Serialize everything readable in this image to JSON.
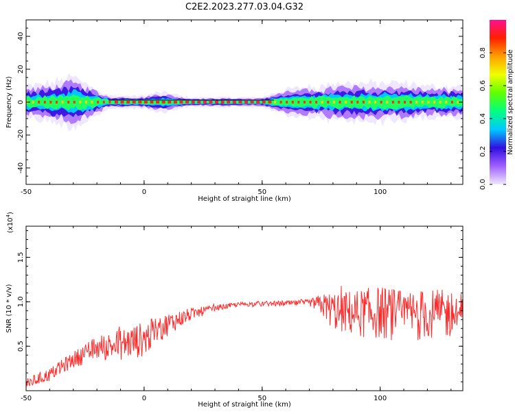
{
  "title": "C2E2.2023.277.03.04.G32",
  "colors": {
    "axis": "#000000",
    "snr_line": "#ff2a2a",
    "background": "#ffffff"
  },
  "chart_data": [
    {
      "type": "heatmap",
      "xlabel": "Height of straight line (km)",
      "ylabel": "Frequency (Hz)",
      "xlim": [
        -50,
        135
      ],
      "ylim": [
        -50,
        50
      ],
      "x_ticks": [
        "-50",
        "0",
        "50",
        "100"
      ],
      "y_ticks": [
        "-40",
        "-20",
        "0",
        "20",
        "40"
      ],
      "x_tick_values": [
        -50,
        0,
        50,
        100
      ],
      "y_tick_values": [
        -40,
        -20,
        0,
        20,
        40
      ],
      "colorbar": {
        "label": "Normalized spectral amplitude",
        "range": [
          0,
          1
        ],
        "ticks": [
          "0.0",
          "0.2",
          "0.4",
          "0.6",
          "0.8"
        ],
        "tick_values": [
          0,
          0.2,
          0.4,
          0.6,
          0.8
        ],
        "colormap": [
          "#f0e8ff",
          "#a060ff",
          "#3010e0",
          "#00c8ff",
          "#00ff80",
          "#60ff00",
          "#f0ff00",
          "#ffa000",
          "#ff2000",
          "#ff1090"
        ]
      },
      "band": {
        "center_freq": 0,
        "heights": [
          -50,
          -40,
          -35,
          -30,
          -25,
          -20,
          -15,
          -10,
          -5,
          0,
          5,
          10,
          15,
          20,
          30,
          40,
          50,
          55,
          60,
          70,
          75,
          80,
          90,
          100,
          110,
          120,
          130,
          135
        ],
        "half_width_hz": [
          5,
          6,
          7,
          8,
          6,
          4,
          2,
          2,
          2,
          2,
          3,
          3,
          2,
          1.5,
          1.5,
          1.5,
          1.5,
          3,
          4,
          5,
          5,
          6,
          6,
          6,
          6,
          5,
          5,
          5
        ]
      }
    },
    {
      "type": "line",
      "xlabel": "Height of straight line (km)",
      "ylabel": "SNR (10 * v/v)",
      "y_scale_label": "(x10",
      "y_scale_exponent": "4",
      "xlim": [
        -50,
        135
      ],
      "ylim": [
        0,
        18500
      ],
      "x_ticks": [
        "-50",
        "0",
        "50",
        "100"
      ],
      "y_ticks": [
        "0.5",
        "1.0",
        "1.5"
      ],
      "x_tick_values": [
        -50,
        0,
        50,
        100
      ],
      "y_tick_values": [
        5000,
        10000,
        15000
      ],
      "series": [
        {
          "x_start": -50,
          "x_end": 135,
          "trend": [
            [
              -50,
              800
            ],
            [
              -40,
              1800
            ],
            [
              -30,
              3500
            ],
            [
              -20,
              4800
            ],
            [
              -10,
              5200
            ],
            [
              0,
              5800
            ],
            [
              10,
              7500
            ],
            [
              20,
              8600
            ],
            [
              30,
              9300
            ],
            [
              40,
              9700
            ],
            [
              50,
              9800
            ],
            [
              60,
              9800
            ],
            [
              70,
              9900
            ],
            [
              75,
              9700
            ],
            [
              80,
              9000
            ],
            [
              90,
              8700
            ],
            [
              100,
              8800
            ],
            [
              110,
              8400
            ],
            [
              120,
              8600
            ],
            [
              135,
              8600
            ]
          ],
          "noise": [
            [
              -50,
              600
            ],
            [
              -30,
              900
            ],
            [
              -20,
              1400
            ],
            [
              -10,
              1800
            ],
            [
              0,
              2000
            ],
            [
              10,
              1300
            ],
            [
              20,
              700
            ],
            [
              30,
              350
            ],
            [
              40,
              250
            ],
            [
              70,
              350
            ],
            [
              75,
              1200
            ],
            [
              80,
              2200
            ],
            [
              90,
              2700
            ],
            [
              100,
              3000
            ],
            [
              135,
              2700
            ]
          ]
        }
      ]
    }
  ]
}
